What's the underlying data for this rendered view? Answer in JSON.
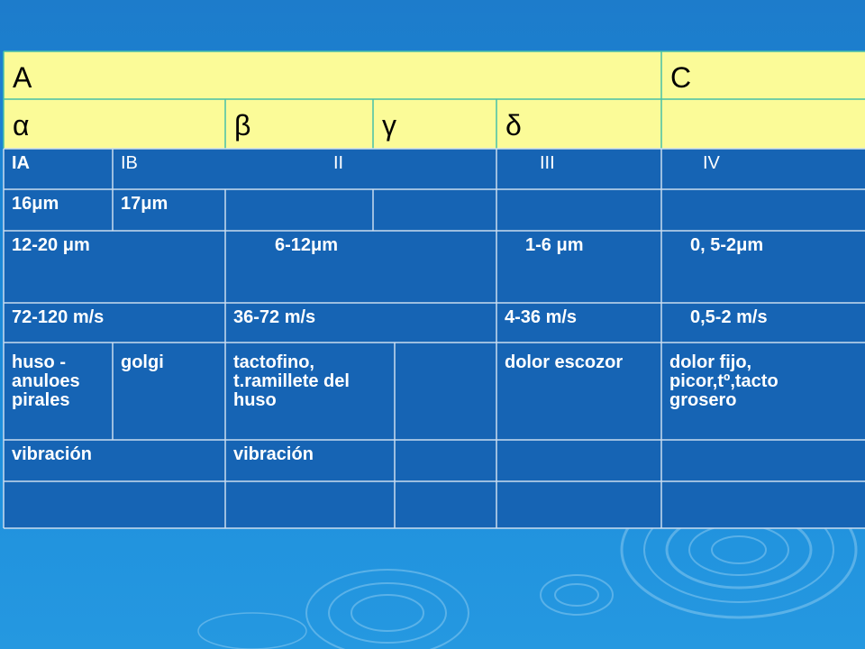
{
  "colors": {
    "header_fill": "#fbfb98",
    "body_fill": "#1664b4",
    "grid_line": "#c9dcef",
    "header_border": "#47c0a8"
  },
  "table": {
    "header_row1": {
      "a": "A",
      "c": "C"
    },
    "header_row2": {
      "alpha": "α",
      "beta": "β",
      "gamma": "γ",
      "delta": "δ"
    },
    "classes": {
      "ia": "IA",
      "ib": "IB",
      "ii": "II",
      "iii": "III",
      "iv": "IV"
    },
    "diam_single": {
      "ia": "16μm",
      "ib": "17μm"
    },
    "diam_range": {
      "ia_ib": "12-20 μm",
      "ii": "6-12μm",
      "iii": "1-6 μm",
      "iv": "0, 5-2μm"
    },
    "speed": {
      "ia_ib": "72-120 m/s",
      "ii": "36-72 m/s",
      "iii": "4-36 m/s",
      "iv": "0,5-2 m/s"
    },
    "receptors": {
      "ia": "huso -\nanuloes\npirales",
      "ib": "golgi",
      "ii": "tactofino,\nt.ramillete del\nhuso",
      "iii": "dolor escozor",
      "iv": "dolor fijo,\npicor,tº,tacto\ngrosero"
    },
    "vibration": {
      "ia_ib": "vibración",
      "ii": "vibración"
    }
  }
}
